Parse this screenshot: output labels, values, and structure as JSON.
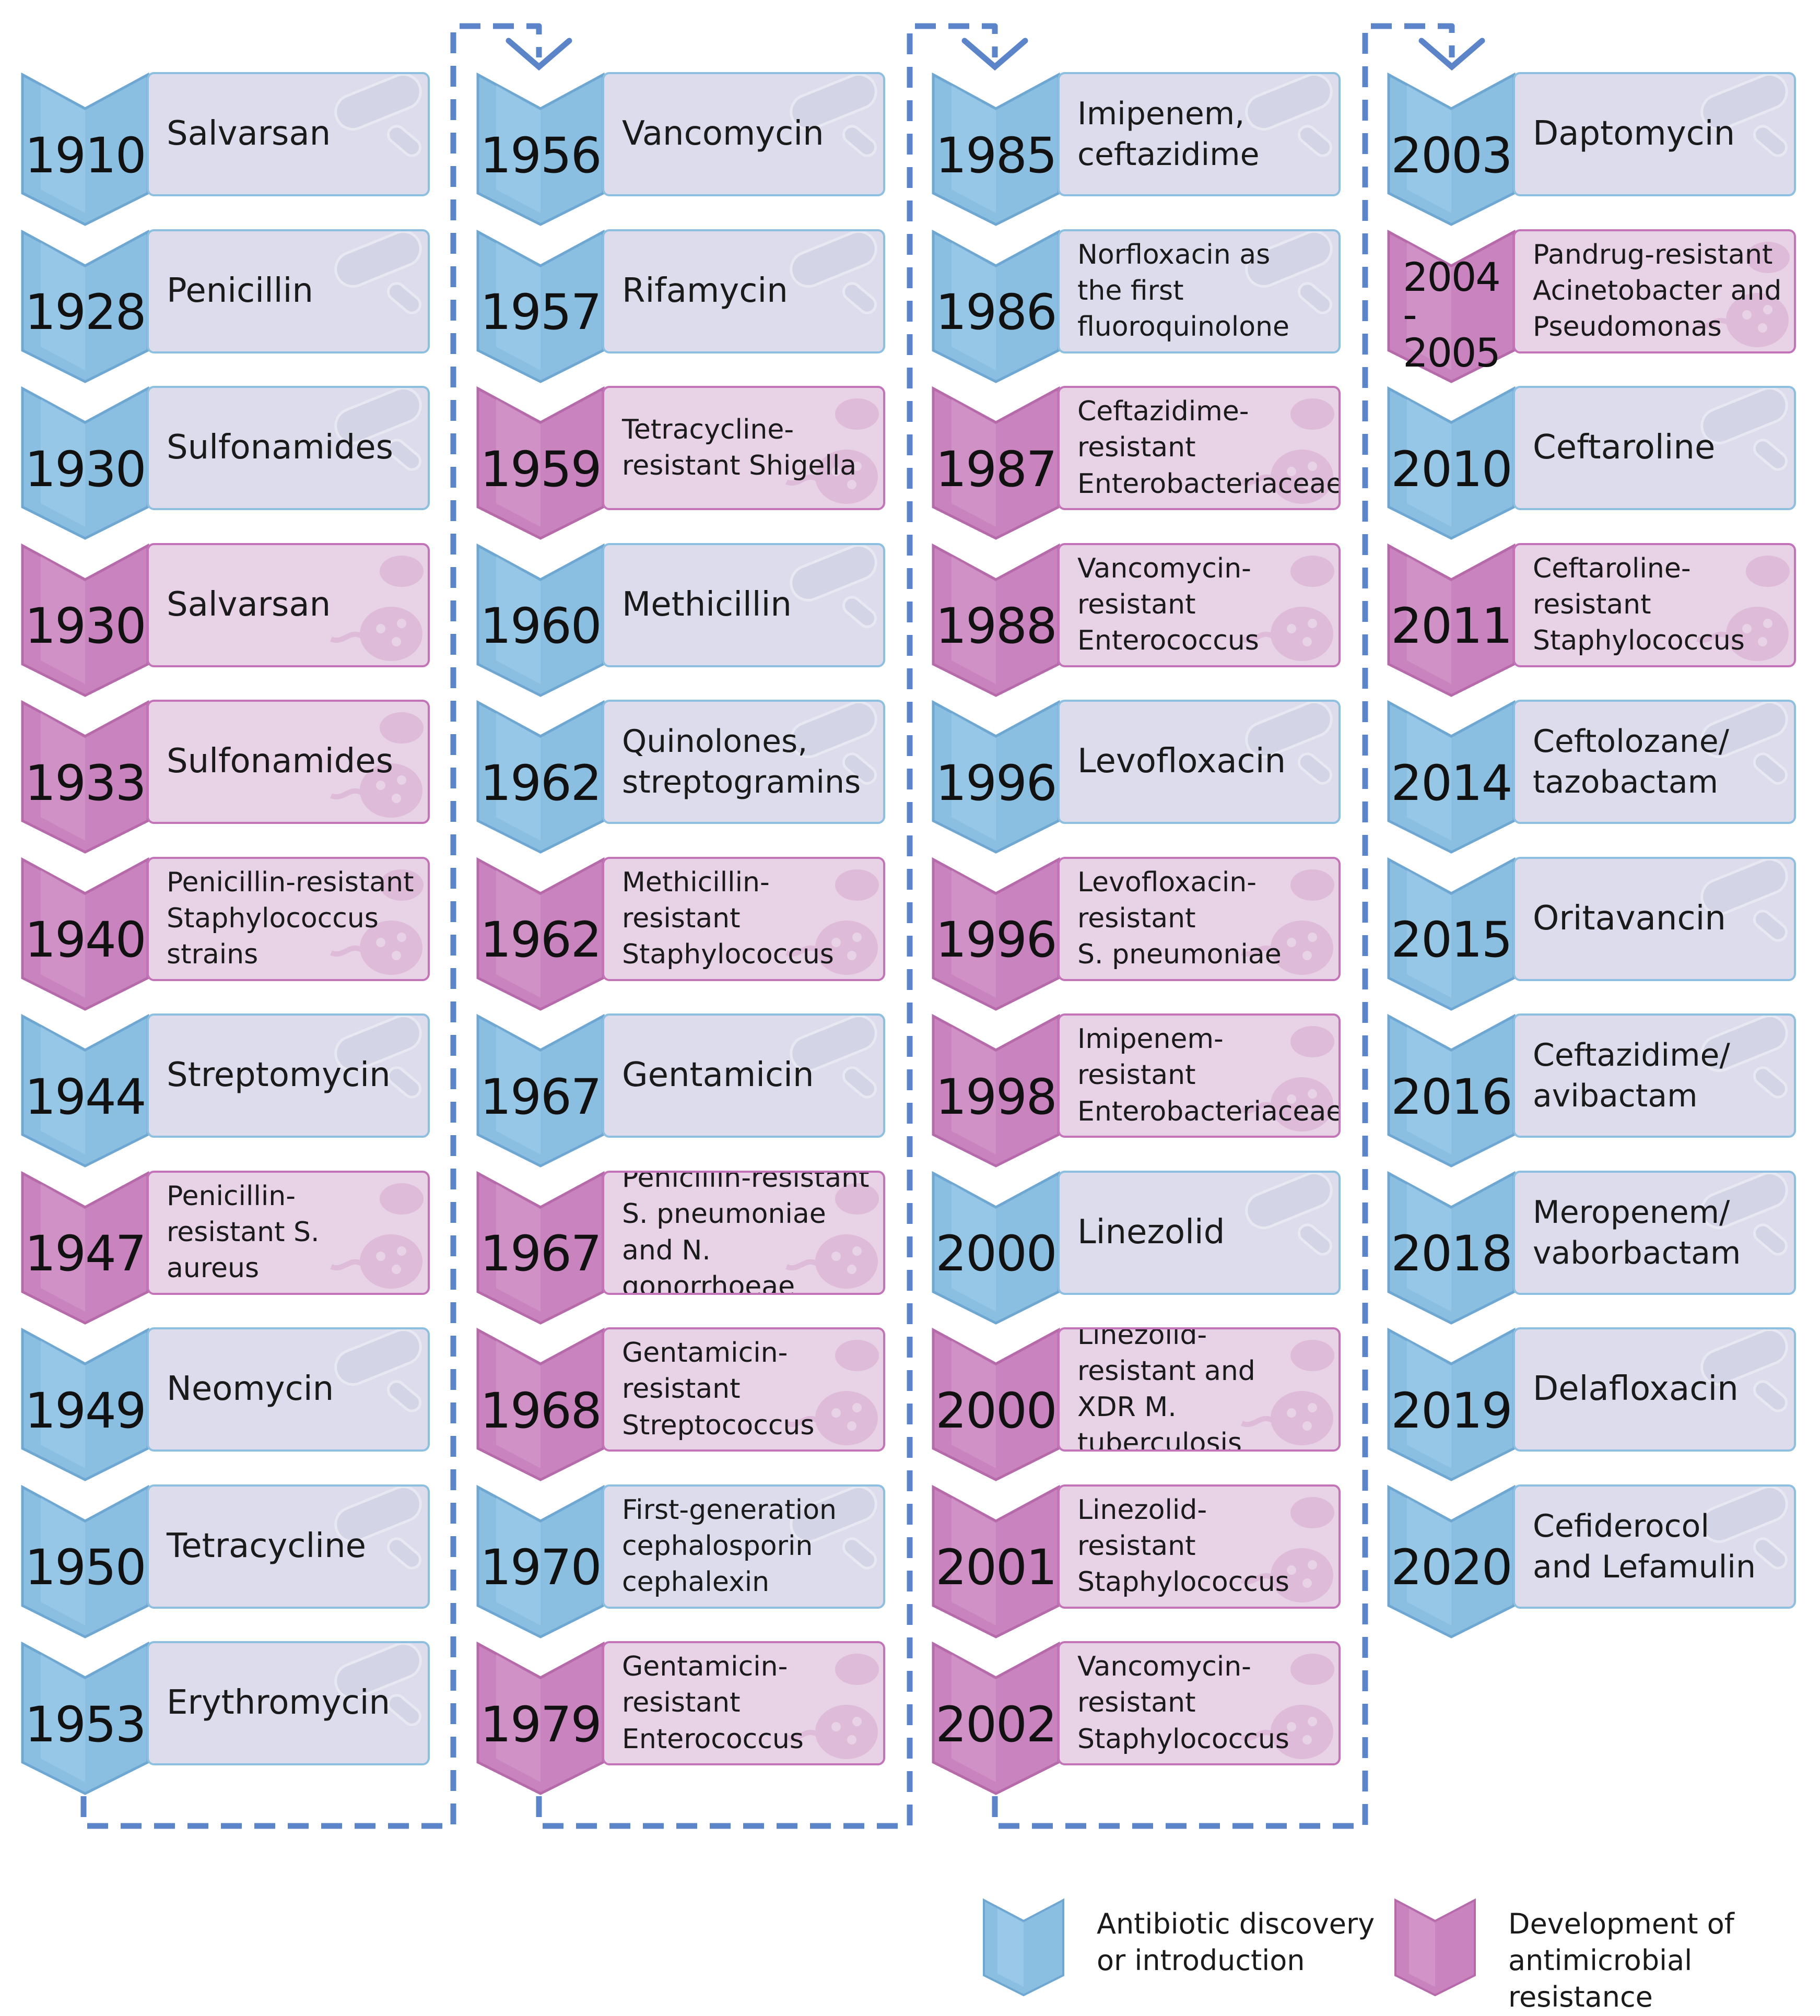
{
  "colors": {
    "discovery_badge": "#8bbfe2",
    "discovery_card": "#dcdcec",
    "resistance_badge": "#c983be",
    "resistance_card": "#e8d2e6",
    "connector": "#5b84c9"
  },
  "columns": [
    {
      "entries": [
        {
          "year": "1910",
          "label": "Salvarsan",
          "type": "discovery"
        },
        {
          "year": "1928",
          "label": "Penicillin",
          "type": "discovery"
        },
        {
          "year": "1930",
          "label": "Sulfonamides",
          "type": "discovery"
        },
        {
          "year": "1930",
          "label": "Salvarsan",
          "type": "resistance"
        },
        {
          "year": "1933",
          "label": "Sulfonamides",
          "type": "resistance"
        },
        {
          "year": "1940",
          "label": "Penicillin-resistant\nStaphylococcus\nstrains",
          "type": "resistance"
        },
        {
          "year": "1944",
          "label": "Streptomycin",
          "type": "discovery"
        },
        {
          "year": "1947",
          "label": "Penicillin-\nresistant S. aureus",
          "type": "resistance"
        },
        {
          "year": "1949",
          "label": "Neomycin",
          "type": "discovery"
        },
        {
          "year": "1950",
          "label": "Tetracycline",
          "type": "discovery"
        },
        {
          "year": "1953",
          "label": "Erythromycin",
          "type": "discovery"
        }
      ]
    },
    {
      "entries": [
        {
          "year": "1956",
          "label": "Vancomycin",
          "type": "discovery"
        },
        {
          "year": "1957",
          "label": "Rifamycin",
          "type": "discovery"
        },
        {
          "year": "1959",
          "label": "Tetracycline-\nresistant Shigella",
          "type": "resistance"
        },
        {
          "year": "1960",
          "label": "Methicillin",
          "type": "discovery"
        },
        {
          "year": "1962",
          "label": "Quinolones,\nstreptogramins",
          "type": "discovery"
        },
        {
          "year": "1962",
          "label": "Methicillin-\nresistant\nStaphylococcus",
          "type": "resistance"
        },
        {
          "year": "1967",
          "label": "Gentamicin",
          "type": "discovery"
        },
        {
          "year": "1967",
          "label": "Penicillin-resistant\nS. pneumoniae\nand N. gonorrhoeae",
          "type": "resistance"
        },
        {
          "year": "1968",
          "label": "Gentamicin-\nresistant\nStreptococcus",
          "type": "resistance"
        },
        {
          "year": "1970",
          "label": "First-generation\ncephalosporin\ncephalexin",
          "type": "discovery"
        },
        {
          "year": "1979",
          "label": "Gentamicin-\nresistant\nEnterococcus",
          "type": "resistance"
        }
      ]
    },
    {
      "entries": [
        {
          "year": "1985",
          "label": "Imipenem,\nceftazidime",
          "type": "discovery"
        },
        {
          "year": "1986",
          "label": "Norfloxacin as\nthe first\nfluoroquinolone",
          "type": "discovery"
        },
        {
          "year": "1987",
          "label": "Ceftazidime-\nresistant\nEnterobacteriaceae",
          "type": "resistance"
        },
        {
          "year": "1988",
          "label": "Vancomycin-\nresistant\nEnterococcus",
          "type": "resistance"
        },
        {
          "year": "1996",
          "label": "Levofloxacin",
          "type": "discovery"
        },
        {
          "year": "1996",
          "label": "Levofloxacin-\nresistant\nS. pneumoniae",
          "type": "resistance"
        },
        {
          "year": "1998",
          "label": "Imipenem-\nresistant\nEnterobacteriaceae",
          "type": "resistance"
        },
        {
          "year": "2000",
          "label": "Linezolid",
          "type": "discovery"
        },
        {
          "year": "2000",
          "label": "Linezolid-\nresistant and\nXDR M. tuberculosis",
          "type": "resistance"
        },
        {
          "year": "2001",
          "label": "Linezolid-\nresistant\nStaphylococcus",
          "type": "resistance"
        },
        {
          "year": "2002",
          "label": "Vancomycin-\nresistant\nStaphylococcus",
          "type": "resistance"
        }
      ]
    },
    {
      "entries": [
        {
          "year": "2003",
          "label": "Daptomycin",
          "type": "discovery"
        },
        {
          "year": "2004\n-\n2005",
          "label": "Pandrug-resistant\nAcinetobacter and\nPseudomonas",
          "type": "resistance"
        },
        {
          "year": "2010",
          "label": "Ceftaroline",
          "type": "discovery"
        },
        {
          "year": "2011",
          "label": "Ceftaroline-\nresistant\nStaphylococcus",
          "type": "resistance"
        },
        {
          "year": "2014",
          "label": "Ceftolozane/\ntazobactam",
          "type": "discovery"
        },
        {
          "year": "2015",
          "label": "Oritavancin",
          "type": "discovery"
        },
        {
          "year": "2016",
          "label": "Ceftazidime/\navibactam",
          "type": "discovery"
        },
        {
          "year": "2018",
          "label": "Meropenem/\nvaborbactam",
          "type": "discovery"
        },
        {
          "year": "2019",
          "label": "Delafloxacin",
          "type": "discovery"
        },
        {
          "year": "2020",
          "label": "Cefiderocol\nand Lefamulin",
          "type": "discovery"
        }
      ]
    }
  ],
  "legend": {
    "discovery": "Antibiotic discovery\nor introduction",
    "resistance": "Development of\nantimicrobial resistance"
  }
}
